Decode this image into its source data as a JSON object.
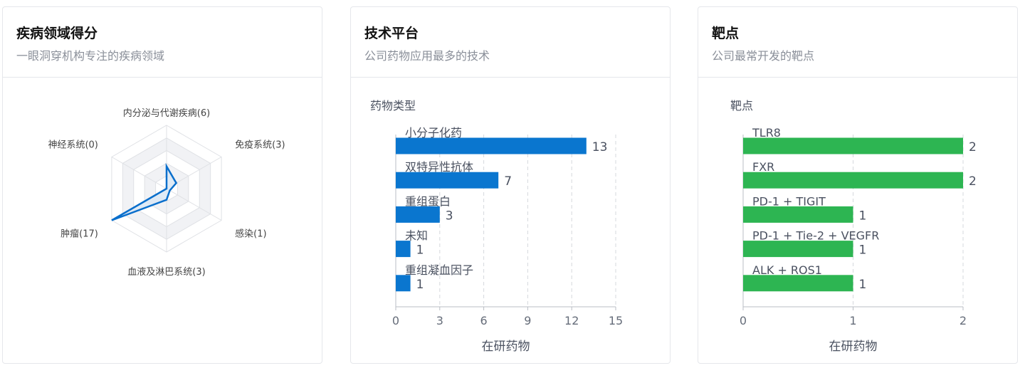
{
  "cards": [
    {
      "title": "疾病领域得分",
      "subtitle": "一眼洞穿机构专注的疾病领域",
      "chart_data": {
        "type": "radar",
        "max": 17,
        "axes": [
          {
            "label": "内分泌与代谢疾病(6)",
            "value": 6
          },
          {
            "label": "免疫系统(3)",
            "value": 3
          },
          {
            "label": "感染(1)",
            "value": 1
          },
          {
            "label": "血液及淋巴系统(3)",
            "value": 3
          },
          {
            "label": "肿瘤(17)",
            "value": 17
          },
          {
            "label": "神经系统(0)",
            "value": 0
          }
        ],
        "colors": {
          "line": "#0a6fcc",
          "fill": "#dbe8f5",
          "grid": "#dfe1e5",
          "band": "#f1f2f5"
        }
      }
    },
    {
      "title": "技术平台",
      "subtitle": "公司药物应用最多的技术",
      "chart_data": {
        "type": "bar",
        "orientation": "horizontal",
        "ylabel": "药物类型",
        "xlabel": "在研药物",
        "categories": [
          "小分子化药",
          "双特异性抗体",
          "重组蛋白",
          "未知",
          "重组凝血因子"
        ],
        "values": [
          13,
          7,
          3,
          1,
          1
        ],
        "xlim": [
          0,
          15
        ],
        "xticks": [
          "0",
          "3",
          "6",
          "9",
          "12",
          "15"
        ],
        "color": "#0a76cf"
      }
    },
    {
      "title": "靶点",
      "subtitle": "公司最常开发的靶点",
      "chart_data": {
        "type": "bar",
        "orientation": "horizontal",
        "ylabel": "靶点",
        "xlabel": "在研药物",
        "categories": [
          "TLR8",
          "FXR",
          "PD-1 + TIGIT",
          "PD-1 + Tie-2 + VEGFR",
          "ALK + ROS1"
        ],
        "values": [
          2,
          2,
          1,
          1,
          1
        ],
        "xlim": [
          0,
          2
        ],
        "xticks": [
          "0",
          "1",
          "2"
        ],
        "color": "#2db552"
      }
    }
  ]
}
